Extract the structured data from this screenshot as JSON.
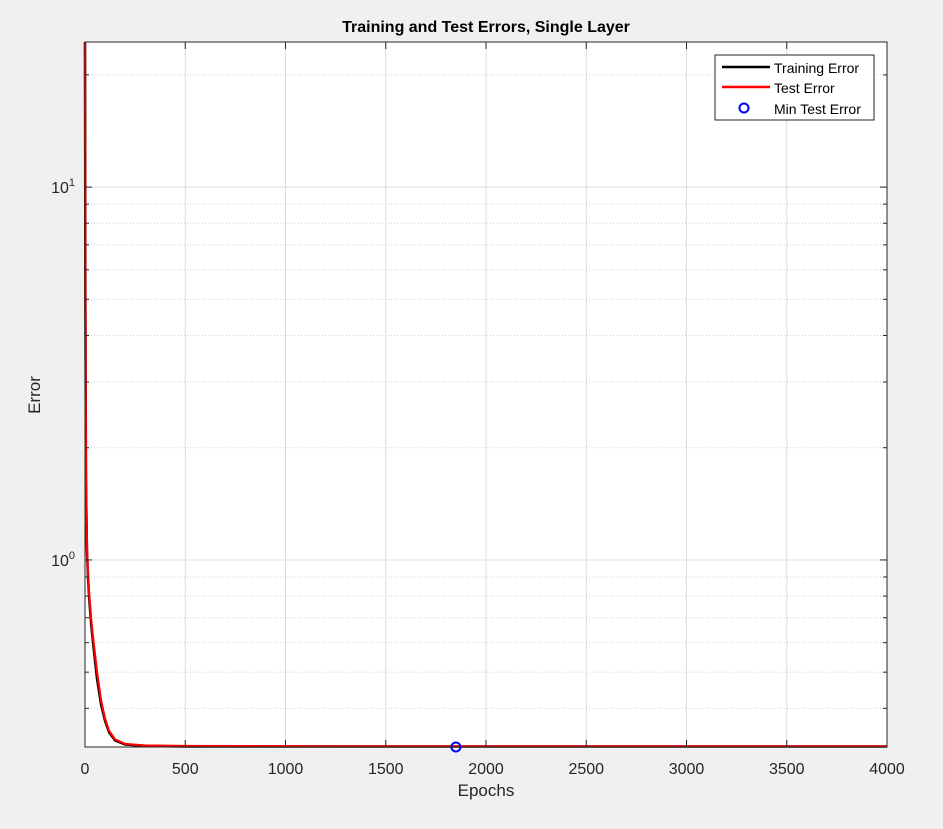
{
  "chart_data": {
    "type": "line",
    "title": "Training and Test Errors, Single Layer",
    "xlabel": "Epochs",
    "ylabel": "Error",
    "xlim": [
      0,
      4000
    ],
    "ylim": [
      0.315,
      24.5
    ],
    "yscale": "log",
    "grid": true,
    "legend_position": "top-right",
    "x_ticks": [
      0,
      500,
      1000,
      1500,
      2000,
      2500,
      3000,
      3500,
      4000
    ],
    "x_tick_labels": [
      "0",
      "500",
      "1000",
      "1500",
      "2000",
      "2500",
      "3000",
      "3500",
      "4000"
    ],
    "y_ticks": [
      1,
      10
    ],
    "y_tick_labels": [
      {
        "base": "10",
        "exp": "0"
      },
      {
        "base": "10",
        "exp": "1"
      }
    ],
    "series": [
      {
        "name": "Training Error",
        "color": "#000000",
        "kind": "line",
        "x": [
          0,
          2,
          5,
          10,
          15,
          20,
          30,
          40,
          60,
          80,
          100,
          120,
          150,
          200,
          300,
          500,
          1000,
          1500,
          2000,
          2500,
          3000,
          3500,
          4000
        ],
        "y": [
          24.5,
          5.0,
          1.6,
          1.05,
          0.9,
          0.8,
          0.68,
          0.6,
          0.48,
          0.41,
          0.37,
          0.345,
          0.328,
          0.32,
          0.317,
          0.316,
          0.316,
          0.316,
          0.316,
          0.316,
          0.316,
          0.316,
          0.316
        ]
      },
      {
        "name": "Test Error",
        "color": "#ff0000",
        "kind": "line",
        "x": [
          0,
          2,
          5,
          10,
          15,
          20,
          30,
          40,
          60,
          80,
          100,
          120,
          150,
          200,
          300,
          500,
          1000,
          1500,
          2000,
          2500,
          3000,
          3500,
          4000
        ],
        "y": [
          24.5,
          5.2,
          1.65,
          1.08,
          0.92,
          0.82,
          0.7,
          0.62,
          0.5,
          0.42,
          0.375,
          0.348,
          0.33,
          0.321,
          0.318,
          0.317,
          0.3165,
          0.3163,
          0.3162,
          0.3162,
          0.3162,
          0.3162,
          0.3162
        ]
      },
      {
        "name": "Min Test Error",
        "color": "#0000ff",
        "kind": "marker",
        "x": [
          1850
        ],
        "y": [
          0.3155
        ]
      }
    ]
  }
}
